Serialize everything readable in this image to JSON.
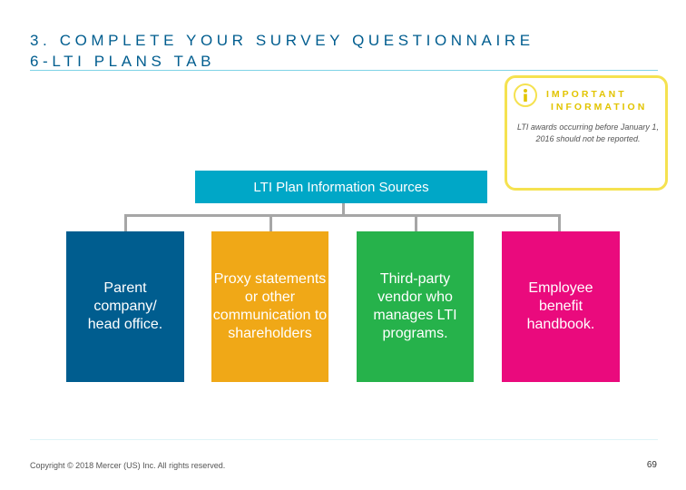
{
  "slide": {
    "title_line1": "3. COMPLETE YOUR SURVEY QUESTIONNAIRE",
    "title_line2": "6-LTI PLANS TAB"
  },
  "info_box": {
    "icon": "info-icon",
    "heading_line1": "IMPORTANT",
    "heading_line2": "INFORMATION",
    "text": "LTI awards occurring before January 1, 2016 should not be reported."
  },
  "diagram": {
    "root_label": "LTI Plan Information Sources",
    "sources": [
      {
        "label": "Parent company/ head office.",
        "color": "#005d8f"
      },
      {
        "label": "Proxy statements or other communication to shareholders",
        "color": "#f0a817"
      },
      {
        "label": "Third-party vendor who manages LTI programs.",
        "color": "#26b24b"
      },
      {
        "label": "Employee benefit handbook.",
        "color": "#ea0a7d"
      }
    ]
  },
  "footer": {
    "copyright": "Copyright © 2018 Mercer (US) Inc. All rights reserved.",
    "page_number": "69"
  },
  "colors": {
    "title": "#005d8f",
    "accent_yellow": "#f5e250",
    "header_box": "#00a7c7",
    "connector": "#a6a6a6"
  }
}
